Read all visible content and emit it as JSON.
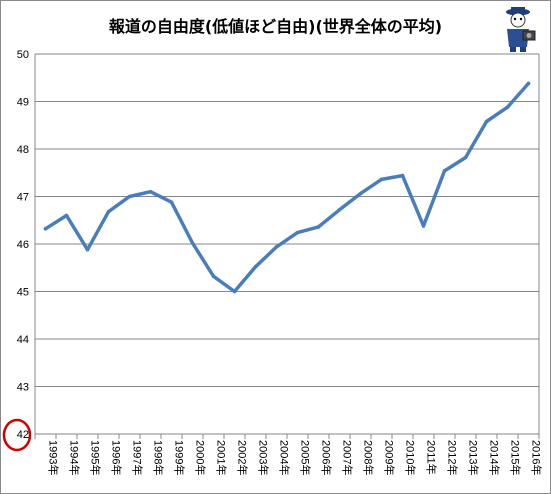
{
  "chart_data": {
    "type": "line",
    "title": "報道の自由度(低値ほど自由)(世界全体の平均)",
    "xlabel": "",
    "ylabel": "",
    "ylim": [
      42,
      50
    ],
    "yticks": [
      "42",
      "43",
      "44",
      "45",
      "46",
      "47",
      "48",
      "49",
      "50"
    ],
    "grid": true,
    "legend": "none",
    "categories": [
      "1993年",
      "1994年",
      "1995年",
      "1996年",
      "1997年",
      "1998年",
      "1999年",
      "2000年",
      "2001年",
      "2002年",
      "2003年",
      "2004年",
      "2005年",
      "2006年",
      "2007年",
      "2008年",
      "2009年",
      "2010年",
      "2011年",
      "2012年",
      "2013年",
      "2014年",
      "2015年",
      "2016年"
    ],
    "series": [
      {
        "color": "#4a7ebb",
        "values": [
          46.32,
          46.6,
          45.88,
          46.68,
          47.0,
          47.1,
          46.88,
          46.02,
          45.32,
          45.0,
          45.52,
          45.94,
          46.24,
          46.36,
          46.72,
          47.06,
          47.36,
          47.44,
          46.38,
          47.54,
          47.82,
          48.58,
          48.88,
          49.38
        ]
      }
    ],
    "highlight_color": "#cc0000"
  }
}
